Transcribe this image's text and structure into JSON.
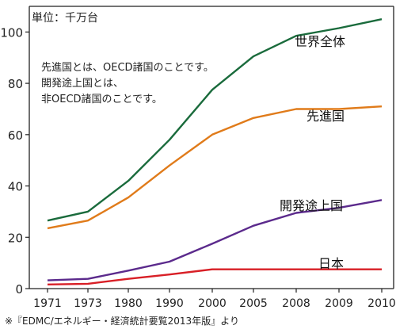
{
  "chart_data": {
    "type": "line",
    "unit_label": "単位：千万台",
    "note": "先進国とは、OECD諸国のことです。\n開発途上国とは、\n非OECD諸国のことです。",
    "source": "※『EDMC/エネルギー・経済統計要覧2013年版』より",
    "categories": [
      "1971",
      "1973",
      "1980",
      "1990",
      "2000",
      "2005",
      "2008",
      "2009",
      "2010"
    ],
    "ylim": [
      0,
      110
    ],
    "yticks": [
      0,
      20,
      40,
      60,
      80,
      100
    ],
    "grid": false,
    "series": [
      {
        "name": "世界全体",
        "color": "#1a6b3c",
        "values": [
          26.5,
          30,
          42,
          58,
          77.5,
          90.5,
          98.5,
          101.5,
          105
        ]
      },
      {
        "name": "先進国",
        "color": "#e07b1a",
        "values": [
          23.5,
          26.5,
          35.5,
          48,
          60,
          66.5,
          70,
          70,
          71
        ]
      },
      {
        "name": "開発途上国",
        "color": "#5b2a8c",
        "values": [
          3.2,
          3.8,
          7,
          10.5,
          17.5,
          24.5,
          29.5,
          31.5,
          34.5
        ]
      },
      {
        "name": "日本",
        "color": "#d81f26",
        "values": [
          1.6,
          1.9,
          3.8,
          5.5,
          7.5,
          7.5,
          7.5,
          7.5,
          7.5
        ]
      }
    ]
  }
}
